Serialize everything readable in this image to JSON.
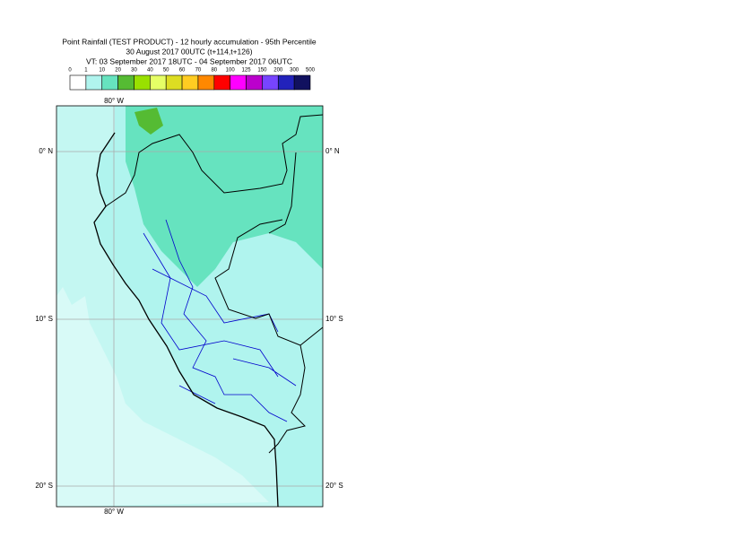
{
  "header": {
    "title": "Point Rainfall (TEST PRODUCT) - 12 hourly accumulation - 95th Percentile",
    "subtitle": "30 August 2017 00UTC (t+114,t+126)",
    "valid_time": "VT: 03 September 2017 18UTC - 04 September 2017 06UTC"
  },
  "legend": {
    "ticks": [
      "0",
      "1",
      "10",
      "20",
      "30",
      "40",
      "50",
      "60",
      "70",
      "80",
      "100",
      "125",
      "150",
      "200",
      "300",
      "500"
    ],
    "colors": [
      "#ffffff",
      "#b0f4ee",
      "#66e3bf",
      "#55bb33",
      "#99e000",
      "#e6ff66",
      "#dddd22",
      "#ffcc22",
      "#ff8800",
      "#ff0000",
      "#ff00ff",
      "#bb00cc",
      "#7744ff",
      "#2222bb",
      "#11115f"
    ]
  },
  "map": {
    "lon_label": "80° W",
    "lat_labels": [
      "0° N",
      "10° S",
      "20° S"
    ]
  }
}
